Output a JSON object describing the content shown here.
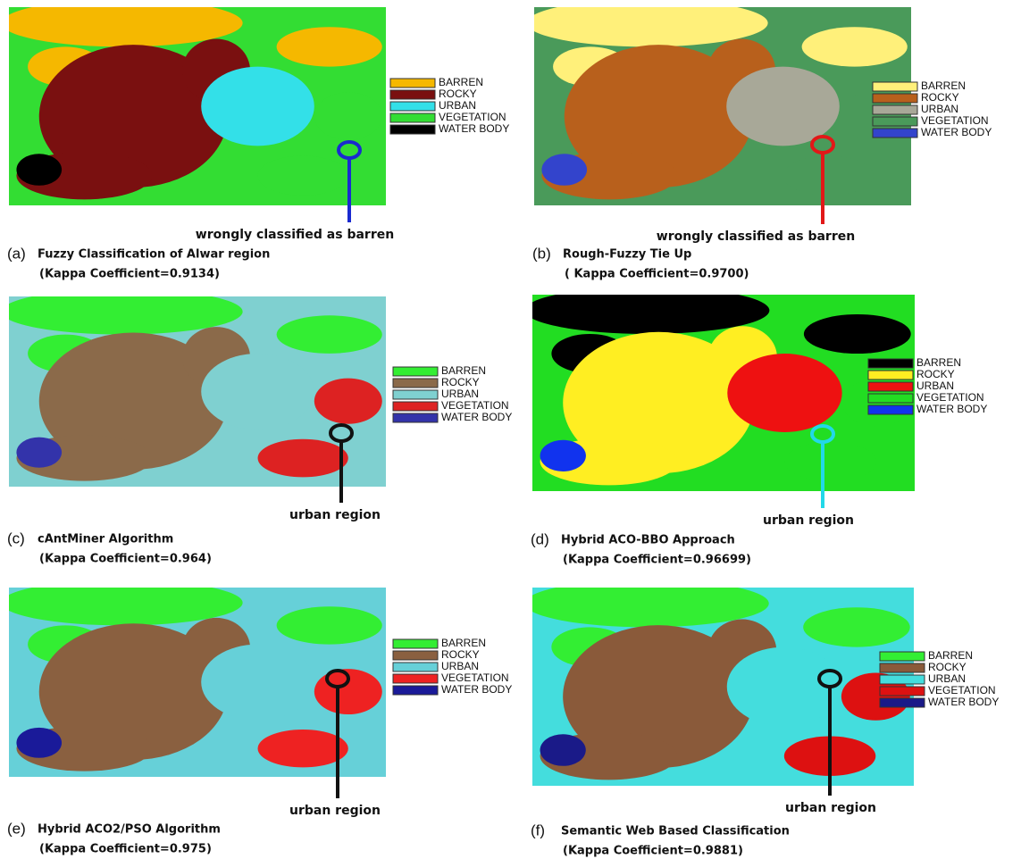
{
  "panels": [
    {
      "letter": "(a)",
      "title": "Fuzzy Classification of Alwar region",
      "kappa": "(Kappa Coefficient=0.9134)",
      "annotation": "wrongly classified as barren",
      "marker_color": "#1a2ad0",
      "legend": [
        {
          "name": "BARREN",
          "color": "#f5b800"
        },
        {
          "name": "ROCKY",
          "color": "#7a1010"
        },
        {
          "name": "URBAN",
          "color": "#33e0e8"
        },
        {
          "name": "VEGETATION",
          "color": "#33dd33"
        },
        {
          "name": "WATER BODY",
          "color": "#000000"
        }
      ]
    },
    {
      "letter": "(b)",
      "title": "Rough-Fuzzy Tie Up",
      "kappa": "( Kappa Coefficient=0.9700)",
      "annotation": "wrongly classified as barren",
      "marker_color": "#e21818",
      "legend": [
        {
          "name": "BARREN",
          "color": "#fff07a"
        },
        {
          "name": "ROCKY",
          "color": "#b8601c"
        },
        {
          "name": "URBAN",
          "color": "#a8a898"
        },
        {
          "name": "VEGETATION",
          "color": "#4a9a5a"
        },
        {
          "name": "WATER BODY",
          "color": "#3344cc"
        }
      ]
    },
    {
      "letter": "(c)",
      "title": "cAntMiner Algorithm",
      "kappa": "(Kappa Coefficient=0.964)",
      "annotation": "urban region",
      "marker_color": "#111111",
      "legend": [
        {
          "name": "BARREN",
          "color": "#33ee33"
        },
        {
          "name": "ROCKY",
          "color": "#8b6a4a"
        },
        {
          "name": "URBAN",
          "color": "#7fd0d0"
        },
        {
          "name": "VEGETATION",
          "color": "#dd2222"
        },
        {
          "name": "WATER BODY",
          "color": "#3333aa"
        }
      ]
    },
    {
      "letter": "(d)",
      "title": "Hybrid ACO-BBO Approach",
      "kappa": "(Kappa Coefficient=0.96699)",
      "annotation": "urban region",
      "marker_color": "#22d8e8",
      "legend": [
        {
          "name": "BARREN",
          "color": "#000000"
        },
        {
          "name": "ROCKY",
          "color": "#ffee22"
        },
        {
          "name": "URBAN",
          "color": "#ee1111"
        },
        {
          "name": "VEGETATION",
          "color": "#22dd22"
        },
        {
          "name": "WATER BODY",
          "color": "#1133ee"
        }
      ]
    },
    {
      "letter": "(e)",
      "title": "Hybrid ACO2/PSO Algorithm",
      "kappa": "(Kappa Coefficient=0.975)",
      "annotation": "urban region",
      "marker_color": "#111111",
      "legend": [
        {
          "name": "BARREN",
          "color": "#33ee33"
        },
        {
          "name": "ROCKY",
          "color": "#8a6040"
        },
        {
          "name": "URBAN",
          "color": "#66d0d8"
        },
        {
          "name": "VEGETATION",
          "color": "#ee2222"
        },
        {
          "name": "WATER BODY",
          "color": "#1a1a99"
        }
      ]
    },
    {
      "letter": "(f)",
      "title": "Semantic Web Based Classification",
      "kappa": "(Kappa Coefficient=0.9881)",
      "annotation": "urban region",
      "marker_color": "#111111",
      "legend": [
        {
          "name": "BARREN",
          "color": "#33ee33"
        },
        {
          "name": "ROCKY",
          "color": "#8a5a3a"
        },
        {
          "name": "URBAN",
          "color": "#44dddd"
        },
        {
          "name": "VEGETATION",
          "color": "#dd1111"
        },
        {
          "name": "WATER BODY",
          "color": "#1a1a88"
        }
      ]
    }
  ]
}
